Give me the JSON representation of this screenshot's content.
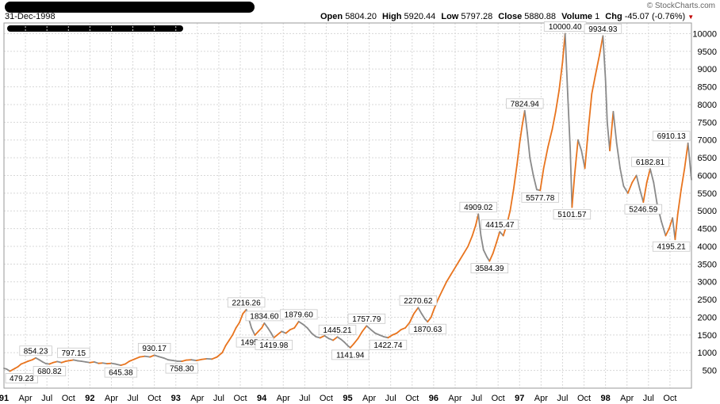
{
  "header": {
    "date": "31-Dec-1998",
    "watermark": "© StockCharts.com",
    "open_label": "Open",
    "open": "5804.20",
    "high_label": "High",
    "high": "5920.44",
    "low_label": "Low",
    "low": "5797.28",
    "close_label": "Close",
    "close": "5880.88",
    "volume_label": "Volume",
    "volume": "1",
    "chg_label": "Chg",
    "chg": "-45.07 (-0.76%)",
    "down_arrow": "▼"
  },
  "colors": {
    "up": "#e8741e",
    "down": "#8a8a8a",
    "grid": "#d8d8d8"
  },
  "chart_data": {
    "type": "line",
    "xlabel": "",
    "ylabel": "",
    "ylim": [
      0,
      10300
    ],
    "yticks": [
      500,
      1000,
      1500,
      2000,
      2500,
      3000,
      3500,
      4000,
      4500,
      5000,
      5500,
      6000,
      6500,
      7000,
      7500,
      8000,
      8500,
      9000,
      9500,
      10000
    ],
    "xticks": [
      {
        "t": 1991.0,
        "label": "91",
        "bold": true
      },
      {
        "t": 1991.25,
        "label": "Apr"
      },
      {
        "t": 1991.5,
        "label": "Jul"
      },
      {
        "t": 1991.75,
        "label": "Oct"
      },
      {
        "t": 1992.0,
        "label": "92",
        "bold": true
      },
      {
        "t": 1992.25,
        "label": "Apr"
      },
      {
        "t": 1992.5,
        "label": "Jul"
      },
      {
        "t": 1992.75,
        "label": "Oct"
      },
      {
        "t": 1993.0,
        "label": "93",
        "bold": true
      },
      {
        "t": 1993.25,
        "label": "Apr"
      },
      {
        "t": 1993.5,
        "label": "Jul"
      },
      {
        "t": 1993.75,
        "label": "Oct"
      },
      {
        "t": 1994.0,
        "label": "94",
        "bold": true
      },
      {
        "t": 1994.25,
        "label": "Apr"
      },
      {
        "t": 1994.5,
        "label": "Jul"
      },
      {
        "t": 1994.75,
        "label": "Oct"
      },
      {
        "t": 1995.0,
        "label": "95",
        "bold": true
      },
      {
        "t": 1995.25,
        "label": "Apr"
      },
      {
        "t": 1995.5,
        "label": "Jul"
      },
      {
        "t": 1995.75,
        "label": "Oct"
      },
      {
        "t": 1996.0,
        "label": "96",
        "bold": true
      },
      {
        "t": 1996.25,
        "label": "Apr"
      },
      {
        "t": 1996.5,
        "label": "Jul"
      },
      {
        "t": 1996.75,
        "label": "Oct"
      },
      {
        "t": 1997.0,
        "label": "97",
        "bold": true
      },
      {
        "t": 1997.25,
        "label": "Apr"
      },
      {
        "t": 1997.5,
        "label": "Jul"
      },
      {
        "t": 1997.75,
        "label": "Oct"
      },
      {
        "t": 1998.0,
        "label": "98",
        "bold": true
      },
      {
        "t": 1998.25,
        "label": "Apr"
      },
      {
        "t": 1998.5,
        "label": "Jul"
      },
      {
        "t": 1998.75,
        "label": "Oct"
      }
    ],
    "series": [
      {
        "points": [
          [
            1991.0,
            560
          ],
          [
            1991.03,
            540
          ],
          [
            1991.07,
            479
          ],
          [
            1991.1,
            520
          ],
          [
            1991.13,
            560
          ],
          [
            1991.16,
            600
          ],
          [
            1991.2,
            680
          ],
          [
            1991.24,
            720
          ],
          [
            1991.28,
            760
          ],
          [
            1991.33,
            800
          ],
          [
            1991.37,
            854
          ],
          [
            1991.41,
            800
          ],
          [
            1991.45,
            740
          ],
          [
            1991.49,
            690
          ],
          [
            1991.53,
            681
          ],
          [
            1991.57,
            720
          ],
          [
            1991.62,
            750
          ],
          [
            1991.67,
            720
          ],
          [
            1991.72,
            760
          ],
          [
            1991.77,
            780
          ],
          [
            1991.81,
            797
          ],
          [
            1991.86,
            770
          ],
          [
            1991.9,
            760
          ],
          [
            1991.95,
            740
          ],
          [
            1992.0,
            720
          ],
          [
            1992.05,
            740
          ],
          [
            1992.1,
            700
          ],
          [
            1992.15,
            710
          ],
          [
            1992.2,
            690
          ],
          [
            1992.25,
            700
          ],
          [
            1992.3,
            680
          ],
          [
            1992.36,
            645
          ],
          [
            1992.41,
            680
          ],
          [
            1992.46,
            760
          ],
          [
            1992.52,
            820
          ],
          [
            1992.58,
            880
          ],
          [
            1992.64,
            900
          ],
          [
            1992.7,
            880
          ],
          [
            1992.75,
            930
          ],
          [
            1992.8,
            890
          ],
          [
            1992.86,
            850
          ],
          [
            1992.91,
            800
          ],
          [
            1992.97,
            780
          ],
          [
            1993.02,
            760
          ],
          [
            1993.07,
            758
          ],
          [
            1993.12,
            790
          ],
          [
            1993.18,
            800
          ],
          [
            1993.24,
            780
          ],
          [
            1993.3,
            810
          ],
          [
            1993.36,
            830
          ],
          [
            1993.42,
            820
          ],
          [
            1993.48,
            880
          ],
          [
            1993.54,
            1000
          ],
          [
            1993.58,
            1200
          ],
          [
            1993.62,
            1350
          ],
          [
            1993.66,
            1500
          ],
          [
            1993.7,
            1700
          ],
          [
            1993.74,
            1850
          ],
          [
            1993.78,
            2100
          ],
          [
            1993.82,
            2216
          ],
          [
            1993.85,
            1950
          ],
          [
            1993.88,
            1700
          ],
          [
            1993.92,
            1495
          ],
          [
            1993.96,
            1600
          ],
          [
            1994.0,
            1700
          ],
          [
            1994.03,
            1835
          ],
          [
            1994.07,
            1700
          ],
          [
            1994.11,
            1550
          ],
          [
            1994.14,
            1420
          ],
          [
            1994.18,
            1500
          ],
          [
            1994.23,
            1600
          ],
          [
            1994.28,
            1550
          ],
          [
            1994.33,
            1650
          ],
          [
            1994.38,
            1700
          ],
          [
            1994.43,
            1880
          ],
          [
            1994.48,
            1800
          ],
          [
            1994.53,
            1700
          ],
          [
            1994.58,
            1550
          ],
          [
            1994.63,
            1450
          ],
          [
            1994.68,
            1420
          ],
          [
            1994.73,
            1480
          ],
          [
            1994.78,
            1400
          ],
          [
            1994.83,
            1350
          ],
          [
            1994.88,
            1445
          ],
          [
            1994.92,
            1380
          ],
          [
            1994.96,
            1300
          ],
          [
            1995.0,
            1200
          ],
          [
            1995.03,
            1142
          ],
          [
            1995.07,
            1250
          ],
          [
            1995.12,
            1400
          ],
          [
            1995.17,
            1600
          ],
          [
            1995.22,
            1758
          ],
          [
            1995.27,
            1650
          ],
          [
            1995.32,
            1550
          ],
          [
            1995.37,
            1500
          ],
          [
            1995.42,
            1450
          ],
          [
            1995.47,
            1423
          ],
          [
            1995.52,
            1500
          ],
          [
            1995.57,
            1550
          ],
          [
            1995.62,
            1650
          ],
          [
            1995.67,
            1700
          ],
          [
            1995.72,
            1850
          ],
          [
            1995.77,
            2100
          ],
          [
            1995.82,
            2271
          ],
          [
            1995.86,
            2100
          ],
          [
            1995.9,
            1950
          ],
          [
            1995.93,
            1871
          ],
          [
            1995.97,
            2000
          ],
          [
            1996.0,
            2200
          ],
          [
            1996.05,
            2500
          ],
          [
            1996.1,
            2750
          ],
          [
            1996.15,
            3000
          ],
          [
            1996.2,
            3200
          ],
          [
            1996.25,
            3400
          ],
          [
            1996.3,
            3600
          ],
          [
            1996.35,
            3800
          ],
          [
            1996.4,
            4000
          ],
          [
            1996.45,
            4300
          ],
          [
            1996.49,
            4600
          ],
          [
            1996.52,
            4909
          ],
          [
            1996.55,
            4300
          ],
          [
            1996.58,
            3900
          ],
          [
            1996.62,
            3700
          ],
          [
            1996.65,
            3584
          ],
          [
            1996.69,
            3800
          ],
          [
            1996.73,
            4100
          ],
          [
            1996.77,
            4415
          ],
          [
            1996.81,
            4300
          ],
          [
            1996.85,
            4600
          ],
          [
            1996.89,
            5000
          ],
          [
            1996.93,
            5600
          ],
          [
            1996.97,
            6300
          ],
          [
            1997.0,
            6900
          ],
          [
            1997.03,
            7400
          ],
          [
            1997.06,
            7825
          ],
          [
            1997.09,
            7200
          ],
          [
            1997.12,
            6500
          ],
          [
            1997.16,
            6000
          ],
          [
            1997.2,
            5600
          ],
          [
            1997.24,
            5578
          ],
          [
            1997.28,
            6200
          ],
          [
            1997.33,
            6800
          ],
          [
            1997.38,
            7300
          ],
          [
            1997.42,
            7800
          ],
          [
            1997.46,
            8400
          ],
          [
            1997.5,
            9200
          ],
          [
            1997.53,
            10000
          ],
          [
            1997.56,
            8300
          ],
          [
            1997.59,
            6700
          ],
          [
            1997.61,
            5102
          ],
          [
            1997.64,
            6000
          ],
          [
            1997.68,
            7000
          ],
          [
            1997.72,
            6700
          ],
          [
            1997.76,
            6200
          ],
          [
            1997.8,
            7300
          ],
          [
            1997.84,
            8300
          ],
          [
            1997.88,
            8800
          ],
          [
            1997.93,
            9400
          ],
          [
            1997.97,
            9935
          ],
          [
            1998.0,
            8700
          ],
          [
            1998.02,
            7500
          ],
          [
            1998.05,
            6700
          ],
          [
            1998.09,
            7800
          ],
          [
            1998.13,
            6900
          ],
          [
            1998.17,
            6200
          ],
          [
            1998.21,
            5700
          ],
          [
            1998.26,
            5500
          ],
          [
            1998.31,
            5800
          ],
          [
            1998.36,
            6000
          ],
          [
            1998.4,
            5600
          ],
          [
            1998.44,
            5247
          ],
          [
            1998.48,
            5800
          ],
          [
            1998.52,
            6183
          ],
          [
            1998.56,
            5800
          ],
          [
            1998.6,
            5200
          ],
          [
            1998.65,
            4700
          ],
          [
            1998.7,
            4300
          ],
          [
            1998.74,
            4500
          ],
          [
            1998.78,
            4800
          ],
          [
            1998.81,
            4195
          ],
          [
            1998.84,
            4900
          ],
          [
            1998.88,
            5600
          ],
          [
            1998.92,
            6200
          ],
          [
            1998.96,
            6910
          ],
          [
            1998.98,
            6400
          ],
          [
            1999.0,
            5881
          ]
        ]
      }
    ],
    "annotations": [
      {
        "t": 1991.07,
        "v": 479,
        "text": "479.23",
        "pos": "below"
      },
      {
        "t": 1991.37,
        "v": 854,
        "text": "854.23",
        "pos": "above"
      },
      {
        "t": 1991.53,
        "v": 681,
        "text": "680.82",
        "pos": "below"
      },
      {
        "t": 1991.81,
        "v": 797,
        "text": "797.15",
        "pos": "above"
      },
      {
        "t": 1992.36,
        "v": 645,
        "text": "645.38",
        "pos": "below"
      },
      {
        "t": 1992.75,
        "v": 930,
        "text": "930.17",
        "pos": "above"
      },
      {
        "t": 1993.07,
        "v": 758,
        "text": "758.30",
        "pos": "below"
      },
      {
        "t": 1993.82,
        "v": 2216,
        "text": "2216.26",
        "pos": "above"
      },
      {
        "t": 1993.92,
        "v": 1495,
        "text": "1495.26",
        "pos": "below"
      },
      {
        "t": 1994.03,
        "v": 1835,
        "text": "1834.60",
        "pos": "above"
      },
      {
        "t": 1994.14,
        "v": 1420,
        "text": "1419.98",
        "pos": "below"
      },
      {
        "t": 1994.43,
        "v": 1880,
        "text": "1879.60",
        "pos": "above"
      },
      {
        "t": 1994.88,
        "v": 1445,
        "text": "1445.21",
        "pos": "above"
      },
      {
        "t": 1995.03,
        "v": 1142,
        "text": "1141.94",
        "pos": "below"
      },
      {
        "t": 1995.22,
        "v": 1758,
        "text": "1757.79",
        "pos": "above"
      },
      {
        "t": 1995.47,
        "v": 1423,
        "text": "1422.74",
        "pos": "below"
      },
      {
        "t": 1995.82,
        "v": 2271,
        "text": "2270.62",
        "pos": "above"
      },
      {
        "t": 1995.93,
        "v": 1871,
        "text": "1870.63",
        "pos": "below"
      },
      {
        "t": 1996.52,
        "v": 4909,
        "text": "4909.02",
        "pos": "above"
      },
      {
        "t": 1996.77,
        "v": 4415,
        "text": "4415.47",
        "pos": "above"
      },
      {
        "t": 1996.65,
        "v": 3584,
        "text": "3584.39",
        "pos": "below"
      },
      {
        "t": 1997.06,
        "v": 7825,
        "text": "7824.94",
        "pos": "above"
      },
      {
        "t": 1997.24,
        "v": 5578,
        "text": "5577.78",
        "pos": "below"
      },
      {
        "t": 1997.53,
        "v": 10000,
        "text": "10000.40",
        "pos": "above"
      },
      {
        "t": 1997.61,
        "v": 5102,
        "text": "5101.57",
        "pos": "below"
      },
      {
        "t": 1997.97,
        "v": 9935,
        "text": "9934.93",
        "pos": "above"
      },
      {
        "t": 1998.44,
        "v": 5247,
        "text": "5246.59",
        "pos": "below"
      },
      {
        "t": 1998.52,
        "v": 6183,
        "text": "6182.81",
        "pos": "above"
      },
      {
        "t": 1998.81,
        "v": 4195,
        "text": "4195.21",
        "pos": "below"
      },
      {
        "t": 1998.96,
        "v": 6910,
        "text": "6910.13",
        "pos": "above"
      }
    ]
  }
}
